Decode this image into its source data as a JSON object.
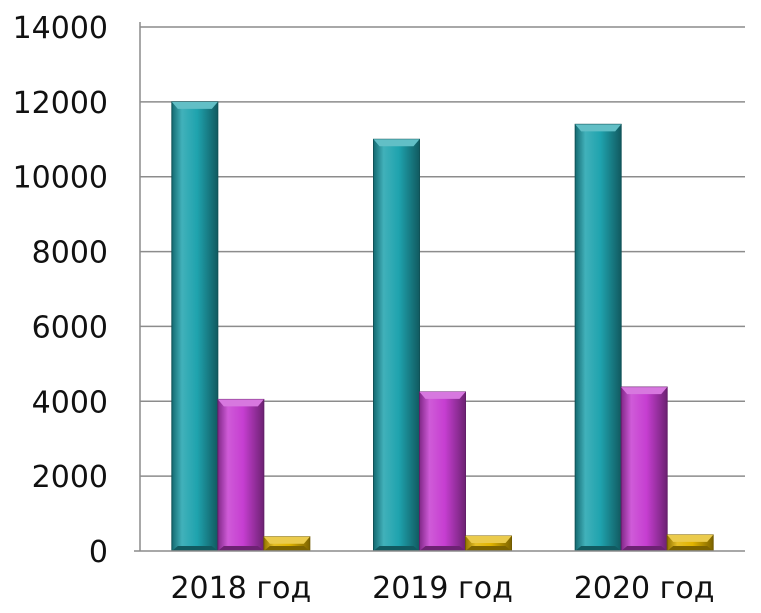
{
  "chart_data": {
    "type": "bar",
    "categories": [
      "2018 год",
      "2019 год",
      "2020 год"
    ],
    "series": [
      {
        "values": [
          12000,
          11000,
          11400
        ],
        "color": "#1fa3ae"
      },
      {
        "values": [
          4050,
          4250,
          4380
        ],
        "color": "#c63ed1"
      },
      {
        "values": [
          380,
          400,
          430
        ],
        "color": "#e2b400"
      }
    ],
    "ylim": [
      0,
      14000
    ],
    "yticks": [
      {
        "value": 0,
        "label": "0"
      },
      {
        "value": 2000,
        "label": "2000"
      },
      {
        "value": 4000,
        "label": "4000"
      },
      {
        "value": 6000,
        "label": "6000"
      },
      {
        "value": 8000,
        "label": "8000"
      },
      {
        "value": 10000,
        "label": "10000"
      },
      {
        "value": 12000,
        "label": "12000"
      },
      {
        "value": 14000,
        "label": "14000"
      }
    ],
    "grid": true,
    "legend": "none"
  }
}
